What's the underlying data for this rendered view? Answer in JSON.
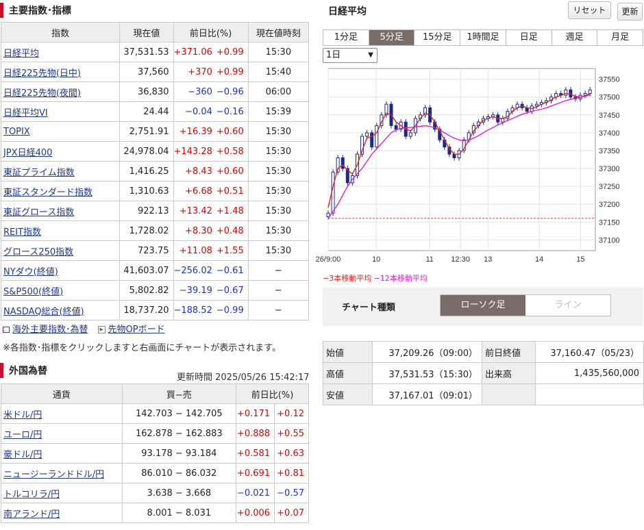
{
  "indices": {
    "title": "主要指数･指標",
    "headers": [
      "指数",
      "現在値",
      "前日比(%)",
      "現在値時刻"
    ],
    "rows": [
      {
        "name": "日経平均",
        "value": "37,531.53",
        "chg": "+371.06",
        "pct": "+0.99",
        "time": "15:30",
        "dir": "up"
      },
      {
        "name": "日経225先物(日中)",
        "value": "37,560",
        "chg": "+370",
        "pct": "+0.99",
        "time": "15:40",
        "dir": "up"
      },
      {
        "name": "日経225先物(夜間)",
        "value": "36,830",
        "chg": "−360",
        "pct": "−0.96",
        "time": "06:00",
        "dir": "dn"
      },
      {
        "name": "日経平均VI",
        "value": "24.44",
        "chg": "−0.04",
        "pct": "−0.16",
        "time": "15:39",
        "dir": "dn"
      },
      {
        "name": "TOPIX",
        "value": "2,751.91",
        "chg": "+16.39",
        "pct": "+0.60",
        "time": "15:30",
        "dir": "up"
      },
      {
        "name": "JPX日経400",
        "value": "24,978.04",
        "chg": "+143.28",
        "pct": "+0.58",
        "time": "15:30",
        "dir": "up"
      },
      {
        "name": "東証プライム指数",
        "value": "1,416.25",
        "chg": "+8.43",
        "pct": "+0.60",
        "time": "15:30",
        "dir": "up"
      },
      {
        "name": "東証スタンダード指数",
        "value": "1,310.63",
        "chg": "+6.68",
        "pct": "+0.51",
        "time": "15:30",
        "dir": "up"
      },
      {
        "name": "東証グロース指数",
        "value": "922.13",
        "chg": "+13.42",
        "pct": "+1.48",
        "time": "15:30",
        "dir": "up"
      },
      {
        "name": "REIT指数",
        "value": "1,728.02",
        "chg": "+8.30",
        "pct": "+0.48",
        "time": "15:30",
        "dir": "up"
      },
      {
        "name": "グロース250指数",
        "value": "723.75",
        "chg": "+11.08",
        "pct": "+1.55",
        "time": "15:30",
        "dir": "up"
      },
      {
        "name": "NYダウ(終値)",
        "value": "41,603.07",
        "chg": "−256.02",
        "pct": "−0.61",
        "time": "−",
        "dir": "dn"
      },
      {
        "name": "S&P500(終値)",
        "value": "5,802.82",
        "chg": "−39.19",
        "pct": "−0.67",
        "time": "−",
        "dir": "dn"
      },
      {
        "name": "NASDAQ総合(終値)",
        "value": "18,737.20",
        "chg": "−188.52",
        "pct": "−0.99",
        "time": "−",
        "dir": "dn"
      }
    ]
  },
  "links": {
    "overseas": "海外主要指数･為替",
    "futures": "先物OPボード"
  },
  "note": "※各指数･指標をクリックしますと右画面にチャートが表示されます。",
  "fx": {
    "title": "外国為替",
    "updated": "更新時間 2025/05/26 15:42:17",
    "headers": [
      "通貨",
      "買−売",
      "前日比(%)"
    ],
    "rows": [
      {
        "name": "米ドル/円",
        "bidask": "142.703 − 142.705",
        "chg": "+0.171",
        "pct": "+0.12",
        "dir": "up"
      },
      {
        "name": "ユーロ/円",
        "bidask": "162.878 − 162.883",
        "chg": "+0.888",
        "pct": "+0.55",
        "dir": "up"
      },
      {
        "name": "豪ドル/円",
        "bidask": "93.178 − 93.184",
        "chg": "+0.581",
        "pct": "+0.63",
        "dir": "up"
      },
      {
        "name": "ニュージーランドドル/円",
        "bidask": "86.010 − 86.032",
        "chg": "+0.691",
        "pct": "+0.81",
        "dir": "up"
      },
      {
        "name": "トルコリラ/円",
        "bidask": "3.638 − 3.668",
        "chg": "−0.021",
        "pct": "−0.57",
        "dir": "dn"
      },
      {
        "name": "南アランド/円",
        "bidask": "8.001 − 8.031",
        "chg": "+0.006",
        "pct": "+0.07",
        "dir": "up"
      }
    ]
  },
  "chart_panel": {
    "title": "日経平均",
    "reset_label": "リセット",
    "refresh_label": "更新",
    "tabs": [
      "1分足",
      "5分足",
      "15分足",
      "1時間足",
      "日足",
      "週足",
      "月足"
    ],
    "active_tab": "5分足",
    "range_value": "1日",
    "legend_ma3": "−3本移動平均",
    "legend_ma12": "−12本移動平均",
    "chart_type_label": "チャート種類",
    "type_candle": "ローソク足",
    "type_line": "ライン",
    "ohlc": {
      "open_label": "始値",
      "open_value": "37,209.26（09:00）",
      "prev_label": "前日終値",
      "prev_value": "37,160.47（05/23）",
      "high_label": "高値",
      "high_value": "37,531.53（15:30）",
      "volume_label": "出来高",
      "volume_value": "1,435,560,000",
      "low_label": "安値",
      "low_value": "37,167.01（09:01）"
    }
  },
  "chart_data": {
    "type": "line",
    "x_tick_labels": [
      "26/9:00",
      "10",
      "11",
      "12:30",
      "13",
      "14",
      "15"
    ],
    "y_tick_labels": [
      "37550",
      "37500",
      "37450",
      "37400",
      "37350",
      "37300",
      "37250",
      "37200",
      "37150",
      "37100"
    ],
    "ylim": [
      37070,
      37580
    ],
    "prev_close": 37160.47,
    "series": [
      {
        "name": "5分足",
        "color": "#1a2a8a",
        "values": [
          37175,
          37290,
          37330,
          37300,
          37260,
          37280,
          37340,
          37390,
          37400,
          37360,
          37420,
          37450,
          37480,
          37420,
          37410,
          37430,
          37390,
          37400,
          37440,
          37450,
          37470,
          37430,
          37410,
          37380,
          37360,
          37340,
          37330,
          37350,
          37380,
          37400,
          37420,
          37430,
          37440,
          37445,
          37450,
          37430,
          37440,
          37460,
          37470,
          37480,
          37470,
          37460,
          37475,
          37480,
          37485,
          37490,
          37500,
          37510,
          37505,
          37520,
          37500,
          37495,
          37505,
          37510,
          37520
        ]
      },
      {
        "name": "3本移動平均",
        "color": "#e02020",
        "values": [
          37190,
          37250,
          37300,
          37310,
          37295,
          37285,
          37310,
          37350,
          37385,
          37390,
          37400,
          37430,
          37455,
          37450,
          37430,
          37420,
          37410,
          37405,
          37420,
          37440,
          37455,
          37450,
          37430,
          37405,
          37380,
          37355,
          37340,
          37340,
          37355,
          37380,
          37405,
          37420,
          37435,
          37440,
          37445,
          37440,
          37440,
          37445,
          37460,
          37470,
          37475,
          37470,
          37468,
          37472,
          37480,
          37485,
          37492,
          37500,
          37505,
          37510,
          37508,
          37502,
          37500,
          37503,
          37510
        ]
      },
      {
        "name": "12本移動平均",
        "color": "#e020d0",
        "values": [
          37160,
          37180,
          37200,
          37225,
          37250,
          37270,
          37285,
          37300,
          37320,
          37340,
          37355,
          37370,
          37385,
          37400,
          37408,
          37412,
          37414,
          37415,
          37416,
          37418,
          37420,
          37418,
          37414,
          37408,
          37400,
          37392,
          37385,
          37380,
          37378,
          37380,
          37385,
          37392,
          37400,
          37408,
          37415,
          37422,
          37428,
          37434,
          37440,
          37446,
          37452,
          37456,
          37460,
          37463,
          37466,
          37470,
          37475,
          37480,
          37485,
          37490,
          37494,
          37497,
          37499,
          37502,
          37506
        ]
      }
    ]
  }
}
